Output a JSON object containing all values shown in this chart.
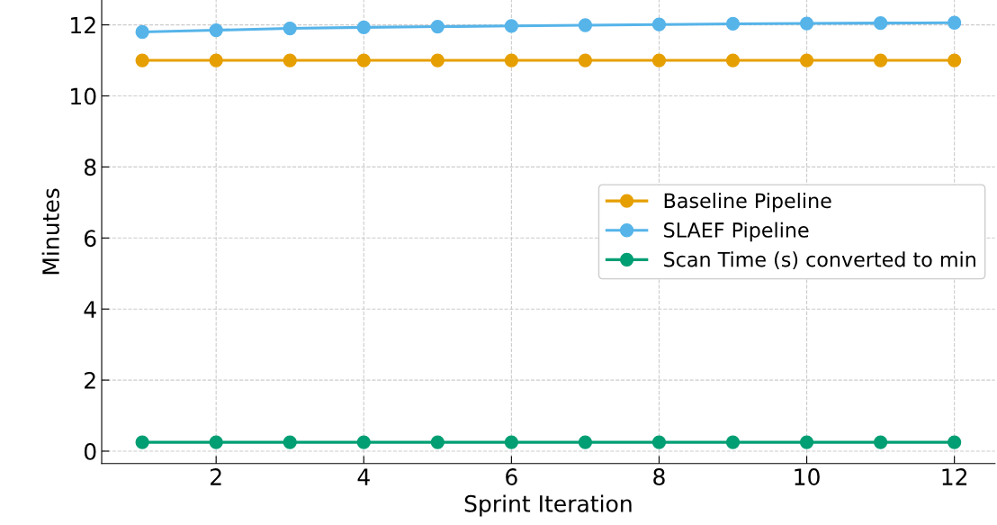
{
  "chart_data": {
    "type": "line",
    "xlabel": "Sprint Iteration",
    "ylabel": "Minutes",
    "x": [
      1,
      2,
      3,
      4,
      5,
      6,
      7,
      8,
      9,
      10,
      11,
      12
    ],
    "series": [
      {
        "name": "Baseline Pipeline",
        "color": "#e69f00",
        "values": [
          11,
          11,
          11,
          11,
          11,
          11,
          11,
          11,
          11,
          11,
          11,
          11
        ]
      },
      {
        "name": "SLAEF Pipeline",
        "color": "#56b4e9",
        "values": [
          11.8,
          11.85,
          11.9,
          11.93,
          11.95,
          11.97,
          11.99,
          12.01,
          12.03,
          12.04,
          12.05,
          12.06
        ]
      },
      {
        "name": "Scan Time (s) converted to min",
        "color": "#009e73",
        "values": [
          0.25,
          0.25,
          0.25,
          0.25,
          0.25,
          0.25,
          0.25,
          0.25,
          0.25,
          0.25,
          0.25,
          0.25
        ]
      }
    ],
    "xlim": [
      0.45,
      12.55
    ],
    "ylim": [
      -0.35,
      12.7
    ],
    "xticks": [
      2,
      4,
      6,
      8,
      10,
      12
    ],
    "yticks": [
      0,
      2,
      4,
      6,
      8,
      10,
      12
    ],
    "grid": true,
    "legend": "center right",
    "marker": "circle",
    "line_style": "solid"
  }
}
